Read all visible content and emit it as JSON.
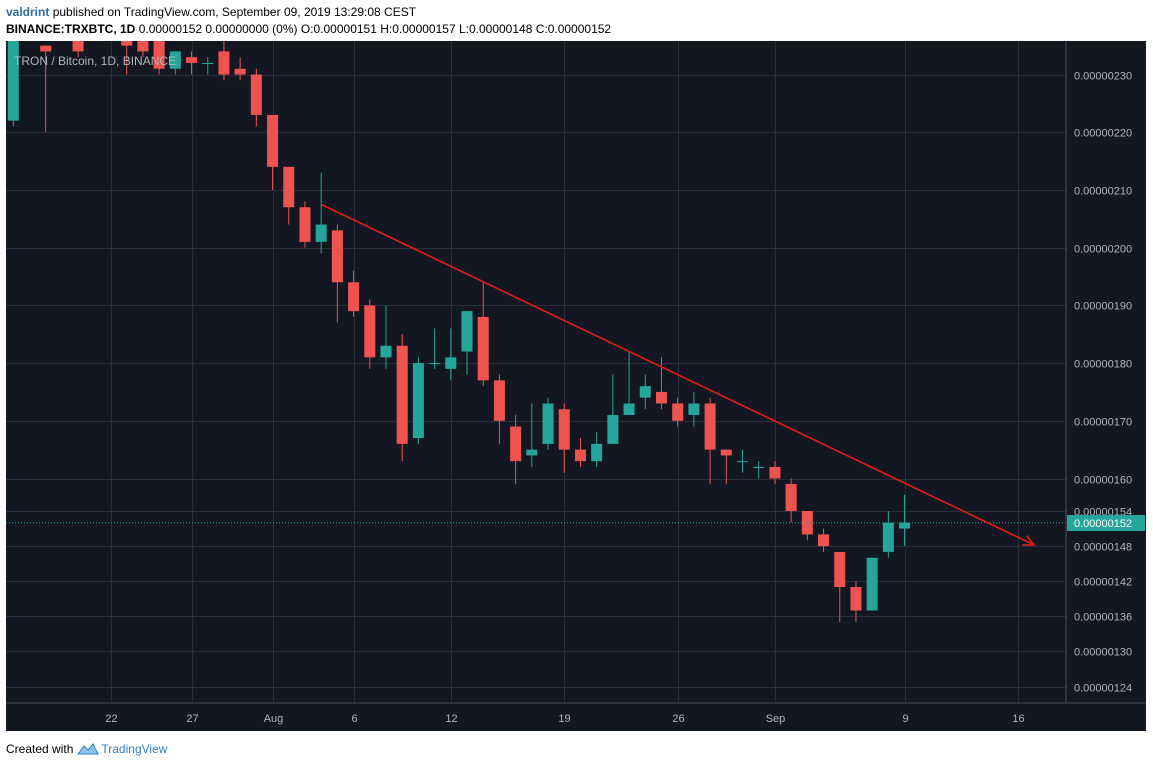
{
  "header": {
    "author": "valdrint",
    "published_text": "published on TradingView.com, September 09, 2019 13:29:08 CEST",
    "symbol_line": "BINANCE:TRXBTC, 1D",
    "ohlc_text": "0.00000152 0.00000000 (0%) O:0.00000151 H:0.00000157 L:0.00000148 C:0.00000152"
  },
  "footer": {
    "created_with": "Created with",
    "brand": "TradingView"
  },
  "colors": {
    "background": "#131722",
    "up": "#26a69a",
    "down": "#ef5350",
    "grid": "#2a2e39",
    "axis_text": "#b2b5be",
    "trendline": "#e31c1c",
    "price_line": "#26a69a"
  },
  "chart_data": {
    "type": "candlestick",
    "legend": "TRON / Bitcoin, 1D, BINANCE",
    "last_price_label": "0.00000152",
    "trendline": {
      "from": {
        "x": "2019-08-04",
        "y": 2.075e-06
      },
      "to": {
        "x": "2019-09-17",
        "y": 1.482e-06
      },
      "arrow": true
    },
    "x_ticks": [
      {
        "date": "2019-07-22",
        "label": "22"
      },
      {
        "date": "2019-07-27",
        "label": "27"
      },
      {
        "date": "2019-08-01",
        "label": "Aug"
      },
      {
        "date": "2019-08-06",
        "label": "6"
      },
      {
        "date": "2019-08-12",
        "label": "12"
      },
      {
        "date": "2019-08-19",
        "label": "19"
      },
      {
        "date": "2019-08-26",
        "label": "26"
      },
      {
        "date": "2019-09-01",
        "label": "Sep"
      },
      {
        "date": "2019-09-09",
        "label": "9"
      },
      {
        "date": "2019-09-16",
        "label": "16"
      }
    ],
    "y_ticks": [
      {
        "value": 2.3e-06,
        "label": "0.00000230"
      },
      {
        "value": 2.2e-06,
        "label": "0.00000220"
      },
      {
        "value": 2.1e-06,
        "label": "0.00000210"
      },
      {
        "value": 2e-06,
        "label": "0.00000200"
      },
      {
        "value": 1.9e-06,
        "label": "0.00000190"
      },
      {
        "value": 1.8e-06,
        "label": "0.00000180"
      },
      {
        "value": 1.7e-06,
        "label": "0.00000170"
      },
      {
        "value": 1.6e-06,
        "label": "0.00000160"
      },
      {
        "value": 1.54e-06,
        "label": "0.00000154"
      },
      {
        "value": 1.48e-06,
        "label": "0.00000148"
      },
      {
        "value": 1.42e-06,
        "label": "0.00000142"
      },
      {
        "value": 1.36e-06,
        "label": "0.00000136"
      },
      {
        "value": 1.3e-06,
        "label": "0.00000130"
      },
      {
        "value": 1.24e-06,
        "label": "0.00000124"
      }
    ],
    "candles": [
      {
        "date": "2019-07-15",
        "o": 2.3e-06,
        "h": 2.32e-06,
        "l": 2.15e-06,
        "c": 2.22e-06
      },
      {
        "date": "2019-07-16",
        "o": 2.22e-06,
        "h": 2.36e-06,
        "l": 2.21e-06,
        "c": 2.36e-06
      },
      {
        "date": "2019-07-18",
        "o": 2.35e-06,
        "h": 2.35e-06,
        "l": 2.2e-06,
        "c": 2.34e-06
      },
      {
        "date": "2019-07-20",
        "o": 2.38e-06,
        "h": 2.4e-06,
        "l": 2.33e-06,
        "c": 2.34e-06
      },
      {
        "date": "2019-07-23",
        "o": 2.38e-06,
        "h": 2.4e-06,
        "l": 2.3e-06,
        "c": 2.35e-06
      },
      {
        "date": "2019-07-24",
        "o": 2.36e-06,
        "h": 2.38e-06,
        "l": 2.33e-06,
        "c": 2.34e-06
      },
      {
        "date": "2019-07-25",
        "o": 2.36e-06,
        "h": 2.38e-06,
        "l": 2.3e-06,
        "c": 2.31e-06
      },
      {
        "date": "2019-07-26",
        "o": 2.31e-06,
        "h": 2.34e-06,
        "l": 2.3e-06,
        "c": 2.34e-06
      },
      {
        "date": "2019-07-27",
        "o": 2.33e-06,
        "h": 2.34e-06,
        "l": 2.3e-06,
        "c": 2.32e-06
      },
      {
        "date": "2019-07-28",
        "o": 2.32e-06,
        "h": 2.33e-06,
        "l": 2.3e-06,
        "c": 2.32e-06
      },
      {
        "date": "2019-07-29",
        "o": 2.34e-06,
        "h": 2.36e-06,
        "l": 2.29e-06,
        "c": 2.3e-06
      },
      {
        "date": "2019-07-30",
        "o": 2.31e-06,
        "h": 2.33e-06,
        "l": 2.29e-06,
        "c": 2.3e-06
      },
      {
        "date": "2019-07-31",
        "o": 2.3e-06,
        "h": 2.31e-06,
        "l": 2.21e-06,
        "c": 2.23e-06
      },
      {
        "date": "2019-08-01",
        "o": 2.23e-06,
        "h": 2.23e-06,
        "l": 2.1e-06,
        "c": 2.14e-06
      },
      {
        "date": "2019-08-02",
        "o": 2.14e-06,
        "h": 2.14e-06,
        "l": 2.04e-06,
        "c": 2.07e-06
      },
      {
        "date": "2019-08-03",
        "o": 2.07e-06,
        "h": 2.08e-06,
        "l": 2e-06,
        "c": 2.01e-06
      },
      {
        "date": "2019-08-04",
        "o": 2.01e-06,
        "h": 2.13e-06,
        "l": 1.99e-06,
        "c": 2.04e-06
      },
      {
        "date": "2019-08-05",
        "o": 2.03e-06,
        "h": 2.04e-06,
        "l": 1.87e-06,
        "c": 1.94e-06
      },
      {
        "date": "2019-08-06",
        "o": 1.94e-06,
        "h": 1.96e-06,
        "l": 1.88e-06,
        "c": 1.89e-06
      },
      {
        "date": "2019-08-07",
        "o": 1.9e-06,
        "h": 1.91e-06,
        "l": 1.79e-06,
        "c": 1.81e-06
      },
      {
        "date": "2019-08-08",
        "o": 1.81e-06,
        "h": 1.9e-06,
        "l": 1.79e-06,
        "c": 1.83e-06
      },
      {
        "date": "2019-08-09",
        "o": 1.83e-06,
        "h": 1.85e-06,
        "l": 1.63e-06,
        "c": 1.66e-06
      },
      {
        "date": "2019-08-10",
        "o": 1.67e-06,
        "h": 1.81e-06,
        "l": 1.66e-06,
        "c": 1.8e-06
      },
      {
        "date": "2019-08-11",
        "o": 1.8e-06,
        "h": 1.86e-06,
        "l": 1.79e-06,
        "c": 1.8e-06
      },
      {
        "date": "2019-08-12",
        "o": 1.79e-06,
        "h": 1.86e-06,
        "l": 1.77e-06,
        "c": 1.81e-06
      },
      {
        "date": "2019-08-13",
        "o": 1.82e-06,
        "h": 1.89e-06,
        "l": 1.78e-06,
        "c": 1.89e-06
      },
      {
        "date": "2019-08-14",
        "o": 1.88e-06,
        "h": 1.94e-06,
        "l": 1.76e-06,
        "c": 1.77e-06
      },
      {
        "date": "2019-08-15",
        "o": 1.77e-06,
        "h": 1.78e-06,
        "l": 1.66e-06,
        "c": 1.7e-06
      },
      {
        "date": "2019-08-16",
        "o": 1.69e-06,
        "h": 1.71e-06,
        "l": 1.59e-06,
        "c": 1.63e-06
      },
      {
        "date": "2019-08-17",
        "o": 1.64e-06,
        "h": 1.73e-06,
        "l": 1.62e-06,
        "c": 1.65e-06
      },
      {
        "date": "2019-08-18",
        "o": 1.66e-06,
        "h": 1.74e-06,
        "l": 1.65e-06,
        "c": 1.73e-06
      },
      {
        "date": "2019-08-19",
        "o": 1.72e-06,
        "h": 1.73e-06,
        "l": 1.61e-06,
        "c": 1.65e-06
      },
      {
        "date": "2019-08-20",
        "o": 1.65e-06,
        "h": 1.67e-06,
        "l": 1.62e-06,
        "c": 1.63e-06
      },
      {
        "date": "2019-08-21",
        "o": 1.63e-06,
        "h": 1.68e-06,
        "l": 1.62e-06,
        "c": 1.66e-06
      },
      {
        "date": "2019-08-22",
        "o": 1.66e-06,
        "h": 1.78e-06,
        "l": 1.66e-06,
        "c": 1.71e-06
      },
      {
        "date": "2019-08-23",
        "o": 1.71e-06,
        "h": 1.82e-06,
        "l": 1.71e-06,
        "c": 1.73e-06
      },
      {
        "date": "2019-08-24",
        "o": 1.74e-06,
        "h": 1.78e-06,
        "l": 1.72e-06,
        "c": 1.76e-06
      },
      {
        "date": "2019-08-25",
        "o": 1.75e-06,
        "h": 1.81e-06,
        "l": 1.72e-06,
        "c": 1.73e-06
      },
      {
        "date": "2019-08-26",
        "o": 1.73e-06,
        "h": 1.74e-06,
        "l": 1.69e-06,
        "c": 1.7e-06
      },
      {
        "date": "2019-08-27",
        "o": 1.71e-06,
        "h": 1.75e-06,
        "l": 1.69e-06,
        "c": 1.73e-06
      },
      {
        "date": "2019-08-28",
        "o": 1.73e-06,
        "h": 1.74e-06,
        "l": 1.59e-06,
        "c": 1.65e-06
      },
      {
        "date": "2019-08-29",
        "o": 1.65e-06,
        "h": 1.65e-06,
        "l": 1.59e-06,
        "c": 1.64e-06
      },
      {
        "date": "2019-08-30",
        "o": 1.63e-06,
        "h": 1.65e-06,
        "l": 1.61e-06,
        "c": 1.63e-06
      },
      {
        "date": "2019-08-31",
        "o": 1.62e-06,
        "h": 1.63e-06,
        "l": 1.6e-06,
        "c": 1.62e-06
      },
      {
        "date": "2019-09-01",
        "o": 1.62e-06,
        "h": 1.63e-06,
        "l": 1.59e-06,
        "c": 1.6e-06
      },
      {
        "date": "2019-09-02",
        "o": 1.59e-06,
        "h": 1.6e-06,
        "l": 1.52e-06,
        "c": 1.54e-06
      },
      {
        "date": "2019-09-03",
        "o": 1.54e-06,
        "h": 1.54e-06,
        "l": 1.49e-06,
        "c": 1.5e-06
      },
      {
        "date": "2019-09-04",
        "o": 1.5e-06,
        "h": 1.51e-06,
        "l": 1.47e-06,
        "c": 1.48e-06
      },
      {
        "date": "2019-09-05",
        "o": 1.47e-06,
        "h": 1.47e-06,
        "l": 1.35e-06,
        "c": 1.41e-06
      },
      {
        "date": "2019-09-06",
        "o": 1.41e-06,
        "h": 1.42e-06,
        "l": 1.35e-06,
        "c": 1.37e-06
      },
      {
        "date": "2019-09-07",
        "o": 1.37e-06,
        "h": 1.46e-06,
        "l": 1.37e-06,
        "c": 1.46e-06
      },
      {
        "date": "2019-09-08",
        "o": 1.47e-06,
        "h": 1.54e-06,
        "l": 1.46e-06,
        "c": 1.52e-06
      },
      {
        "date": "2019-09-09",
        "o": 1.51e-06,
        "h": 1.57e-06,
        "l": 1.48e-06,
        "c": 1.52e-06
      }
    ]
  }
}
